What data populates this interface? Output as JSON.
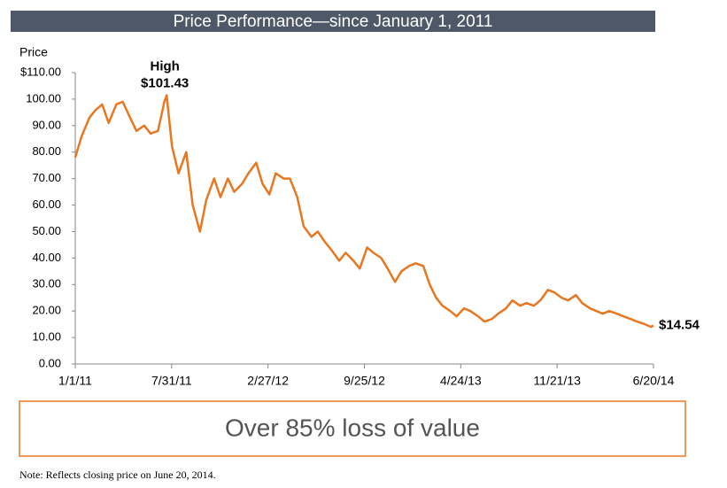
{
  "chart_data": {
    "type": "line",
    "title": "Price Performance—since January 1, 2011",
    "ylabel": "Price",
    "annotation": "High",
    "color": "#e87722",
    "x": [
      "2011-01-01",
      "2011-01-15",
      "2011-02-01",
      "2011-02-15",
      "2011-03-01",
      "2011-03-15",
      "2011-04-01",
      "2011-04-15",
      "2011-05-01",
      "2011-05-15",
      "2011-06-01",
      "2011-06-15",
      "2011-07-01",
      "2011-07-15",
      "2011-07-20",
      "2011-08-01",
      "2011-08-15",
      "2011-09-01",
      "2011-09-15",
      "2011-10-01",
      "2011-10-15",
      "2011-11-01",
      "2011-11-15",
      "2011-12-01",
      "2011-12-15",
      "2012-01-01",
      "2012-01-15",
      "2012-02-01",
      "2012-02-15",
      "2012-03-01",
      "2012-03-15",
      "2012-04-01",
      "2012-04-15",
      "2012-05-01",
      "2012-05-15",
      "2012-06-01",
      "2012-06-15",
      "2012-07-01",
      "2012-07-15",
      "2012-08-01",
      "2012-08-15",
      "2012-09-01",
      "2012-09-15",
      "2012-10-01",
      "2012-10-15",
      "2012-11-01",
      "2012-11-15",
      "2012-12-01",
      "2012-12-15",
      "2013-01-01",
      "2013-01-15",
      "2013-02-01",
      "2013-02-15",
      "2013-03-01",
      "2013-03-15",
      "2013-04-01",
      "2013-04-15",
      "2013-05-01",
      "2013-05-15",
      "2013-06-01",
      "2013-06-15",
      "2013-07-01",
      "2013-07-15",
      "2013-08-01",
      "2013-08-15",
      "2013-09-01",
      "2013-09-15",
      "2013-10-01",
      "2013-10-15",
      "2013-11-01",
      "2013-11-15",
      "2013-12-01",
      "2013-12-15",
      "2014-01-01",
      "2014-01-15",
      "2014-02-01",
      "2014-02-15",
      "2014-03-01",
      "2014-03-15",
      "2014-04-01",
      "2014-04-15",
      "2014-05-01",
      "2014-05-15",
      "2014-06-01",
      "2014-06-15",
      "2014-06-20"
    ],
    "values": [
      78,
      86,
      93,
      96,
      98,
      91,
      98,
      99,
      93,
      88,
      90,
      87,
      88,
      99,
      101.43,
      82,
      72,
      80,
      60,
      50,
      62,
      70,
      63,
      70,
      65,
      68,
      72,
      76,
      68,
      64,
      72,
      70,
      70,
      63,
      52,
      48,
      50,
      46,
      43,
      39,
      42,
      39,
      36,
      44,
      42,
      40,
      36,
      31,
      35,
      37,
      38,
      37,
      30,
      25,
      22,
      20,
      18,
      21,
      20,
      18,
      16,
      17,
      19,
      21,
      24,
      22,
      23,
      22,
      24,
      28,
      27,
      25,
      24,
      26,
      23,
      21,
      20,
      19,
      20,
      19,
      18,
      17,
      16,
      15,
      14,
      14.54
    ],
    "value_labels": [
      null,
      null,
      null,
      null,
      null,
      null,
      null,
      null,
      null,
      null,
      null,
      null,
      null,
      null,
      "$101.43",
      null,
      null,
      null,
      null,
      null,
      null,
      null,
      null,
      null,
      null,
      null,
      null,
      null,
      null,
      null,
      null,
      null,
      null,
      null,
      null,
      null,
      null,
      null,
      null,
      null,
      null,
      null,
      null,
      null,
      null,
      null,
      null,
      null,
      null,
      null,
      null,
      null,
      null,
      null,
      null,
      null,
      null,
      null,
      null,
      null,
      null,
      null,
      null,
      null,
      null,
      null,
      null,
      null,
      null,
      null,
      null,
      null,
      null,
      null,
      null,
      null,
      null,
      null,
      null,
      null,
      null,
      null,
      null,
      null,
      null,
      "$14.54"
    ],
    "xlim": [
      "2011-01-01",
      "2014-06-20"
    ],
    "xticks": [
      {
        "value": "2011-01-01",
        "label": "1/1/11"
      },
      {
        "value": "2011-07-31",
        "label": "7/31/11"
      },
      {
        "value": "2012-02-27",
        "label": "2/27/12"
      },
      {
        "value": "2012-09-25",
        "label": "9/25/12"
      },
      {
        "value": "2013-04-24",
        "label": "4/24/13"
      },
      {
        "value": "2013-11-21",
        "label": "11/21/13"
      },
      {
        "value": "2014-06-20",
        "label": "6/20/14"
      }
    ],
    "ylim": [
      0,
      110
    ],
    "yticks": [
      {
        "value": 0,
        "label": "0.00"
      },
      {
        "value": 10,
        "label": "10.00"
      },
      {
        "value": 20,
        "label": "20.00"
      },
      {
        "value": 30,
        "label": "30.00"
      },
      {
        "value": 40,
        "label": "40.00"
      },
      {
        "value": 50,
        "label": "50.00"
      },
      {
        "value": 60,
        "label": "60.00"
      },
      {
        "value": 70,
        "label": "70.00"
      },
      {
        "value": 80,
        "label": "80.00"
      },
      {
        "value": 90,
        "label": "90.00"
      },
      {
        "value": 100,
        "label": "100.00"
      },
      {
        "value": 110,
        "label": "$110.00"
      }
    ],
    "grid": false
  },
  "callout": "Over 85% loss of value",
  "note": "Note: Reflects closing price on June 20, 2014."
}
